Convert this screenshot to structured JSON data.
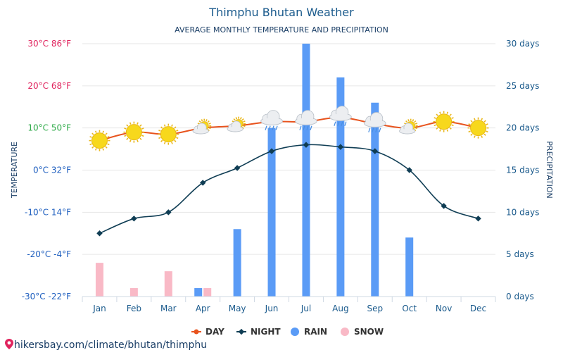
{
  "title": "Thimphu Bhutan Weather",
  "subtitle": "AVERAGE MONTHLY TEMPERATURE AND PRECIPITATION",
  "left_axis_label": "TEMPERATURE",
  "right_axis_label": "PRECIPITATION",
  "watermark": "hikersbay.com/climate/bhutan/thimphu",
  "colors": {
    "title": "#1a5a8c",
    "day": "#e8531d",
    "night": "#0f3d54",
    "rain": "#5a9bf6",
    "snow": "#f9b9c6",
    "grid": "#e6e6e6",
    "tick_blue": "#1f5fbf",
    "tick_green": "#2eaa48",
    "tick_pink": "#e0245e",
    "sun": "#f7d81c"
  },
  "chart_data": {
    "type": "line",
    "categories": [
      "Jan",
      "Feb",
      "Mar",
      "Apr",
      "May",
      "Jun",
      "Jul",
      "Aug",
      "Sep",
      "Oct",
      "Nov",
      "Dec"
    ],
    "series": [
      {
        "name": "DAY",
        "axis": "temperature",
        "values": [
          7,
          9,
          8.5,
          10,
          10.5,
          11.5,
          11.5,
          12.5,
          11,
          10,
          11.5,
          10
        ]
      },
      {
        "name": "NIGHT",
        "axis": "temperature",
        "values": [
          -15,
          -11.5,
          -10,
          -3,
          0.5,
          4.5,
          6,
          5.5,
          4.5,
          0,
          -8.5,
          -11.5
        ]
      },
      {
        "name": "RAIN",
        "axis": "precipitation",
        "type": "bar",
        "values": [
          0,
          0,
          0,
          1,
          8,
          20,
          30,
          26,
          23,
          7,
          0,
          0
        ]
      },
      {
        "name": "SNOW",
        "axis": "precipitation",
        "type": "bar",
        "values": [
          4,
          1,
          3,
          1,
          0,
          0,
          0,
          0,
          0,
          0,
          0,
          0
        ]
      }
    ],
    "weather_icons": [
      "sun",
      "sun",
      "sun",
      "sun-cloud",
      "sun-cloud",
      "rain-cloud",
      "rain-cloud",
      "rain-cloud",
      "rain-cloud",
      "sun-cloud",
      "sun",
      "sun"
    ],
    "left_ticks": [
      {
        "value": 30,
        "c": "30°C",
        "f": "86°F",
        "color": "pink"
      },
      {
        "value": 20,
        "c": "20°C",
        "f": "68°F",
        "color": "pink"
      },
      {
        "value": 10,
        "c": "10°C",
        "f": "50°F",
        "color": "green"
      },
      {
        "value": 0,
        "c": "0°C",
        "f": "32°F",
        "color": "blue"
      },
      {
        "value": -10,
        "c": "-10°C",
        "f": "14°F",
        "color": "blue"
      },
      {
        "value": -20,
        "c": "-20°C",
        "f": "-4°F",
        "color": "blue"
      },
      {
        "value": -30,
        "c": "-30°C",
        "f": "-22°F",
        "color": "blue"
      }
    ],
    "right_ticks": [
      {
        "value": 30,
        "label": "30 days"
      },
      {
        "value": 25,
        "label": "25 days"
      },
      {
        "value": 20,
        "label": "20 days"
      },
      {
        "value": 15,
        "label": "15 days"
      },
      {
        "value": 10,
        "label": "10 days"
      },
      {
        "value": 5,
        "label": "5 days"
      },
      {
        "value": 0,
        "label": "0 days"
      }
    ],
    "ylim_left": [
      -30,
      30
    ],
    "ylim_right": [
      0,
      30
    ],
    "grid": true,
    "legend_position": "bottom-center"
  }
}
